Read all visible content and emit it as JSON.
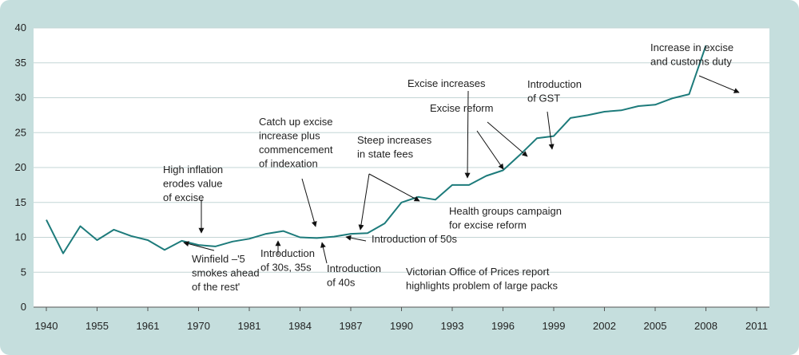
{
  "chart_data": {
    "type": "line",
    "title": "",
    "xlabel": "",
    "ylabel": "",
    "ylim": [
      0,
      40
    ],
    "yticks": [
      "0",
      "5",
      "10",
      "15",
      "20",
      "25",
      "30",
      "35",
      "40"
    ],
    "xticks": [
      "1940",
      "1955",
      "1961",
      "1970",
      "1981",
      "1984",
      "1987",
      "1990",
      "1993",
      "1996",
      "1999",
      "2002",
      "2005",
      "2008",
      "2011"
    ],
    "x_positions": [
      0,
      1,
      2,
      3,
      4,
      5,
      6,
      7,
      8,
      9,
      10,
      11,
      12,
      13,
      14
    ],
    "grid": "horizontal",
    "line_color": "#1d7b7b",
    "series": [
      {
        "name": "",
        "points": [
          [
            0.0,
            12.5
          ],
          [
            0.33,
            7.7
          ],
          [
            0.67,
            11.6
          ],
          [
            1.0,
            9.6
          ],
          [
            1.33,
            11.1
          ],
          [
            1.67,
            10.2
          ],
          [
            2.0,
            9.6
          ],
          [
            2.33,
            8.2
          ],
          [
            2.67,
            9.5
          ],
          [
            3.0,
            8.9
          ],
          [
            3.33,
            8.7
          ],
          [
            3.67,
            9.4
          ],
          [
            4.0,
            9.8
          ],
          [
            4.33,
            10.5
          ],
          [
            4.67,
            10.9
          ],
          [
            5.0,
            10.0
          ],
          [
            5.33,
            9.9
          ],
          [
            5.67,
            10.1
          ],
          [
            6.0,
            10.5
          ],
          [
            6.33,
            10.6
          ],
          [
            6.67,
            12.0
          ],
          [
            7.0,
            15.0
          ],
          [
            7.33,
            15.8
          ],
          [
            7.67,
            15.4
          ],
          [
            8.0,
            17.5
          ],
          [
            8.33,
            17.5
          ],
          [
            8.67,
            18.8
          ],
          [
            9.0,
            19.6
          ],
          [
            9.33,
            21.8
          ],
          [
            9.67,
            24.2
          ],
          [
            10.0,
            24.5
          ],
          [
            10.33,
            27.1
          ],
          [
            10.67,
            27.5
          ],
          [
            11.0,
            28.0
          ],
          [
            11.33,
            28.2
          ],
          [
            11.67,
            28.8
          ],
          [
            12.0,
            29.0
          ],
          [
            12.33,
            29.9
          ],
          [
            12.67,
            30.5
          ],
          [
            13.0,
            37.5
          ]
        ]
      }
    ],
    "annotations": [
      {
        "lines": [
          "High inflation",
          "erodes value",
          "of excise"
        ]
      },
      {
        "lines": [
          "Winfield –'5",
          "smokes ahead",
          "of the rest'"
        ]
      },
      {
        "lines": [
          "Introduction",
          "of 30s, 35s"
        ]
      },
      {
        "lines": [
          "Catch up excise",
          "increase plus",
          "commencement",
          "of indexation"
        ]
      },
      {
        "lines": [
          "Introduction",
          "of 40s"
        ]
      },
      {
        "lines": [
          "Introduction of 50s"
        ]
      },
      {
        "lines": [
          "Steep increases",
          "in state fees"
        ]
      },
      {
        "lines": [
          "Excise increases"
        ]
      },
      {
        "lines": [
          "Excise reform"
        ]
      },
      {
        "lines": [
          "Introduction",
          "of GST"
        ]
      },
      {
        "lines": [
          "Health groups campaign",
          "for excise reform"
        ]
      },
      {
        "lines": [
          "Victorian Office of Prices report",
          "highlights problem of large packs"
        ]
      },
      {
        "lines": [
          "Increase in excise",
          "and customs duty"
        ]
      }
    ]
  }
}
